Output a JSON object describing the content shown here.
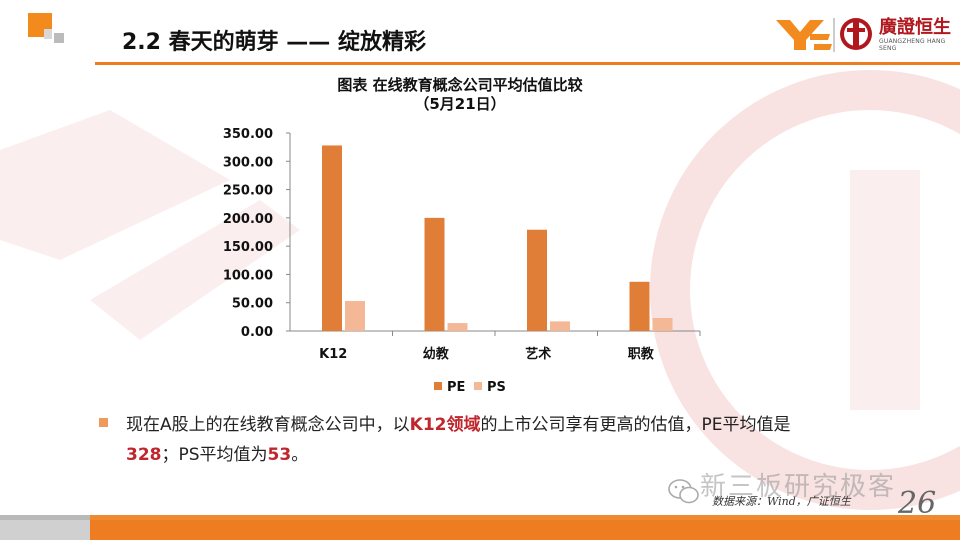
{
  "header": {
    "title": "2.2 春天的萌芽 —— 绽放精彩",
    "logo_text": "廣證恒生",
    "logo_subtext": "GUANGZHENG HANG SENG"
  },
  "chart_data": {
    "type": "bar",
    "title": "图表 在线教育概念公司平均估值比较",
    "subtitle": "（5月21日）",
    "categories": [
      "K12",
      "幼教",
      "艺术",
      "职教"
    ],
    "series": [
      {
        "name": "PE",
        "values": [
          328,
          200,
          179,
          87
        ]
      },
      {
        "name": "PS",
        "values": [
          53,
          14,
          17,
          23
        ]
      }
    ],
    "y_ticks": [
      "0.00",
      "50.00",
      "100.00",
      "150.00",
      "200.00",
      "250.00",
      "300.00",
      "350.00"
    ],
    "ylim": [
      0,
      350
    ],
    "xlabel": "",
    "ylabel": "",
    "grid": false,
    "legend_position": "bottom",
    "colors": {
      "PE": "#e07e38",
      "PS": "#f5b896"
    }
  },
  "note": {
    "part1": "现在A股上的在线教育概念公司中，以",
    "highlight1": "K12领域",
    "part2": "的上市公司享有更高的估值，PE平均值是",
    "highlight2": "328",
    "part3": "；PS平均值为",
    "highlight3": "53",
    "part4": "。"
  },
  "footer": {
    "source": "数据来源：Wind，广证恒生",
    "watermark": "新三板研究极客",
    "page_number": "26"
  },
  "colors": {
    "accent": "#ee7d22",
    "highlight": "#c0262d"
  }
}
